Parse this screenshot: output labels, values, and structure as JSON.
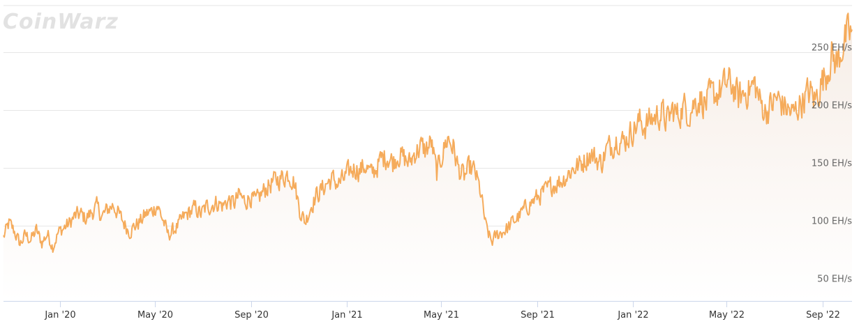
{
  "watermark": "CoinWarz",
  "colors": {
    "line": "#f5ab5b",
    "area_top": "#f6ede6",
    "area_bottom": "#ffffff",
    "grid": "#e6e6e6",
    "axis": "#ccd6eb"
  },
  "chart_data": {
    "type": "area",
    "title": "",
    "xlabel": "",
    "ylabel": "",
    "series_name": "",
    "unit": "EH/s",
    "ylim": [
      35,
      290
    ],
    "xlim": [
      "2019-10-21",
      "2022-10-08"
    ],
    "grid": true,
    "legend": "none",
    "y_ticks": [
      {
        "value": 50,
        "label": "50 EH/s"
      },
      {
        "value": 100,
        "label": "100 EH/s"
      },
      {
        "value": 150,
        "label": "150 EH/s"
      },
      {
        "value": 200,
        "label": "200 EH/s"
      },
      {
        "value": 250,
        "label": "250 EH/s"
      }
    ],
    "x_ticks": [
      {
        "date": "2020-01-01",
        "label": "Jan '20"
      },
      {
        "date": "2020-05-01",
        "label": "May '20"
      },
      {
        "date": "2020-09-01",
        "label": "Sep '20"
      },
      {
        "date": "2021-01-01",
        "label": "Jan '21"
      },
      {
        "date": "2021-05-01",
        "label": "May '21"
      },
      {
        "date": "2021-09-01",
        "label": "Sep '21"
      },
      {
        "date": "2022-01-01",
        "label": "Jan '22"
      },
      {
        "date": "2022-05-01",
        "label": "May '22"
      },
      {
        "date": "2022-09-01",
        "label": "Sep '22"
      }
    ],
    "points": [
      [
        "2019-10-21",
        90
      ],
      [
        "2019-10-28",
        102
      ],
      [
        "2019-11-04",
        95
      ],
      [
        "2019-11-11",
        84
      ],
      [
        "2019-11-18",
        92
      ],
      [
        "2019-11-25",
        88
      ],
      [
        "2019-12-02",
        96
      ],
      [
        "2019-12-09",
        85
      ],
      [
        "2019-12-16",
        93
      ],
      [
        "2019-12-23",
        82
      ],
      [
        "2019-12-30",
        94
      ],
      [
        "2020-01-06",
        98
      ],
      [
        "2020-01-13",
        102
      ],
      [
        "2020-01-20",
        108
      ],
      [
        "2020-01-27",
        110
      ],
      [
        "2020-02-03",
        106
      ],
      [
        "2020-02-10",
        111
      ],
      [
        "2020-02-17",
        116
      ],
      [
        "2020-02-24",
        108
      ],
      [
        "2020-03-02",
        114
      ],
      [
        "2020-03-09",
        118
      ],
      [
        "2020-03-16",
        110
      ],
      [
        "2020-03-23",
        102
      ],
      [
        "2020-03-30",
        95
      ],
      [
        "2020-04-06",
        100
      ],
      [
        "2020-04-13",
        104
      ],
      [
        "2020-04-20",
        110
      ],
      [
        "2020-04-27",
        112
      ],
      [
        "2020-05-04",
        118
      ],
      [
        "2020-05-11",
        106
      ],
      [
        "2020-05-18",
        92
      ],
      [
        "2020-05-25",
        96
      ],
      [
        "2020-06-01",
        101
      ],
      [
        "2020-06-08",
        108
      ],
      [
        "2020-06-15",
        112
      ],
      [
        "2020-06-22",
        115
      ],
      [
        "2020-06-29",
        110
      ],
      [
        "2020-07-06",
        116
      ],
      [
        "2020-07-13",
        118
      ],
      [
        "2020-07-20",
        120
      ],
      [
        "2020-07-27",
        117
      ],
      [
        "2020-08-03",
        122
      ],
      [
        "2020-08-10",
        119
      ],
      [
        "2020-08-17",
        126
      ],
      [
        "2020-08-24",
        121
      ],
      [
        "2020-08-31",
        125
      ],
      [
        "2020-09-07",
        120
      ],
      [
        "2020-09-14",
        127
      ],
      [
        "2020-09-21",
        133
      ],
      [
        "2020-09-28",
        137
      ],
      [
        "2020-10-05",
        140
      ],
      [
        "2020-10-12",
        142
      ],
      [
        "2020-10-19",
        145
      ],
      [
        "2020-10-26",
        138
      ],
      [
        "2020-11-02",
        114
      ],
      [
        "2020-11-09",
        103
      ],
      [
        "2020-11-16",
        116
      ],
      [
        "2020-11-23",
        126
      ],
      [
        "2020-11-30",
        131
      ],
      [
        "2020-12-07",
        137
      ],
      [
        "2020-12-14",
        140
      ],
      [
        "2020-12-21",
        136
      ],
      [
        "2020-12-28",
        140
      ],
      [
        "2021-01-04",
        146
      ],
      [
        "2021-01-11",
        150
      ],
      [
        "2021-01-18",
        148
      ],
      [
        "2021-01-25",
        152
      ],
      [
        "2021-02-01",
        144
      ],
      [
        "2021-02-08",
        150
      ],
      [
        "2021-02-15",
        158
      ],
      [
        "2021-02-22",
        160
      ],
      [
        "2021-03-01",
        155
      ],
      [
        "2021-03-08",
        162
      ],
      [
        "2021-03-15",
        158
      ],
      [
        "2021-03-22",
        154
      ],
      [
        "2021-03-29",
        163
      ],
      [
        "2021-04-05",
        168
      ],
      [
        "2021-04-12",
        165
      ],
      [
        "2021-04-19",
        172
      ],
      [
        "2021-04-26",
        145
      ],
      [
        "2021-05-03",
        162
      ],
      [
        "2021-05-10",
        176
      ],
      [
        "2021-05-17",
        168
      ],
      [
        "2021-05-24",
        148
      ],
      [
        "2021-05-31",
        142
      ],
      [
        "2021-06-07",
        150
      ],
      [
        "2021-06-14",
        146
      ],
      [
        "2021-06-21",
        128
      ],
      [
        "2021-06-28",
        98
      ],
      [
        "2021-07-05",
        86
      ],
      [
        "2021-07-12",
        92
      ],
      [
        "2021-07-19",
        95
      ],
      [
        "2021-07-26",
        98
      ],
      [
        "2021-08-02",
        104
      ],
      [
        "2021-08-09",
        108
      ],
      [
        "2021-08-16",
        114
      ],
      [
        "2021-08-23",
        119
      ],
      [
        "2021-08-30",
        123
      ],
      [
        "2021-09-06",
        127
      ],
      [
        "2021-09-13",
        130
      ],
      [
        "2021-09-20",
        135
      ],
      [
        "2021-09-27",
        137
      ],
      [
        "2021-10-04",
        140
      ],
      [
        "2021-10-11",
        145
      ],
      [
        "2021-10-18",
        150
      ],
      [
        "2021-10-25",
        152
      ],
      [
        "2021-11-01",
        157
      ],
      [
        "2021-11-08",
        162
      ],
      [
        "2021-11-15",
        158
      ],
      [
        "2021-11-22",
        154
      ],
      [
        "2021-11-29",
        166
      ],
      [
        "2021-12-06",
        170
      ],
      [
        "2021-12-13",
        176
      ],
      [
        "2021-12-20",
        172
      ],
      [
        "2021-12-27",
        178
      ],
      [
        "2022-01-03",
        184
      ],
      [
        "2022-01-10",
        190
      ],
      [
        "2022-01-17",
        186
      ],
      [
        "2022-01-24",
        192
      ],
      [
        "2022-01-31",
        194
      ],
      [
        "2022-02-07",
        198
      ],
      [
        "2022-02-14",
        190
      ],
      [
        "2022-02-21",
        200
      ],
      [
        "2022-02-28",
        195
      ],
      [
        "2022-03-07",
        203
      ],
      [
        "2022-03-14",
        198
      ],
      [
        "2022-03-21",
        206
      ],
      [
        "2022-03-28",
        210
      ],
      [
        "2022-04-04",
        205
      ],
      [
        "2022-04-11",
        212
      ],
      [
        "2022-04-18",
        214
      ],
      [
        "2022-04-25",
        218
      ],
      [
        "2022-05-02",
        224
      ],
      [
        "2022-05-09",
        220
      ],
      [
        "2022-05-16",
        210
      ],
      [
        "2022-05-23",
        214
      ],
      [
        "2022-05-30",
        218
      ],
      [
        "2022-06-06",
        222
      ],
      [
        "2022-06-13",
        206
      ],
      [
        "2022-06-20",
        198
      ],
      [
        "2022-06-27",
        204
      ],
      [
        "2022-07-04",
        210
      ],
      [
        "2022-07-11",
        205
      ],
      [
        "2022-07-18",
        200
      ],
      [
        "2022-07-25",
        196
      ],
      [
        "2022-08-01",
        204
      ],
      [
        "2022-08-08",
        210
      ],
      [
        "2022-08-15",
        216
      ],
      [
        "2022-08-22",
        208
      ],
      [
        "2022-08-29",
        222
      ],
      [
        "2022-09-05",
        232
      ],
      [
        "2022-09-12",
        246
      ],
      [
        "2022-09-19",
        240
      ],
      [
        "2022-09-26",
        256
      ],
      [
        "2022-10-03",
        264
      ],
      [
        "2022-10-08",
        268
      ]
    ],
    "daily_noise_amplitude": 18
  }
}
